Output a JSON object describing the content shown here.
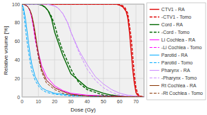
{
  "chart_data": {
    "type": "line",
    "xlabel": "Dose (Gy)",
    "ylabel": "Relative volume [%]",
    "xlim": [
      0,
      75
    ],
    "ylim": [
      0,
      100
    ],
    "xticks": [
      0,
      10,
      20,
      30,
      40,
      50,
      60,
      70
    ],
    "yticks": [
      0,
      20,
      40,
      60,
      80,
      100
    ],
    "grid": true,
    "legend": "upper right",
    "series": [
      {
        "name": "CTV1 - RA",
        "color": "#dd0000",
        "line_style": "solid",
        "x": [
          0,
          55,
          58,
          60,
          62,
          64,
          65,
          66,
          67,
          68,
          69,
          70,
          71,
          72,
          75
        ],
        "values": [
          100,
          100,
          100,
          99,
          97,
          92,
          85,
          70,
          50,
          30,
          15,
          5,
          2,
          1,
          0
        ]
      },
      {
        "name": "-CTV1 - Tomo",
        "color": "#dd0000",
        "line_style": "dashed",
        "x": [
          0,
          58,
          61,
          63,
          65,
          67,
          68,
          69,
          70,
          71,
          72,
          75
        ],
        "values": [
          100,
          100,
          99,
          97,
          90,
          65,
          45,
          25,
          10,
          4,
          1,
          0
        ]
      },
      {
        "name": "Cord - RA",
        "color": "#006600",
        "line_style": "solid",
        "x": [
          0,
          1,
          2,
          3,
          5,
          8,
          10,
          12,
          14,
          16,
          18,
          20,
          25,
          30,
          40,
          50,
          55,
          60,
          65
        ],
        "values": [
          100,
          100,
          100,
          100,
          100,
          100,
          100,
          99,
          97,
          93,
          85,
          70,
          45,
          25,
          10,
          4,
          2,
          1,
          0
        ]
      },
      {
        "name": "-Cord - Tomo",
        "color": "#006600",
        "line_style": "dashed",
        "x": [
          0,
          1,
          2,
          3,
          5,
          8,
          10,
          12,
          14,
          16,
          18,
          20,
          22,
          25,
          30,
          35,
          40,
          50,
          60
        ],
        "values": [
          100,
          100,
          100,
          100,
          100,
          100,
          100,
          99,
          97,
          93,
          87,
          78,
          65,
          50,
          30,
          15,
          8,
          2,
          0
        ]
      },
      {
        "name": "Li Cochlea - RA",
        "color": "#ff00ff",
        "line_style": "solid",
        "x": [
          0,
          1,
          2,
          3,
          4,
          5,
          6,
          7,
          8,
          10,
          12,
          15,
          20,
          25,
          30,
          40,
          55,
          75
        ],
        "values": [
          100,
          100,
          99,
          98,
          96,
          92,
          85,
          76,
          65,
          48,
          34,
          22,
          12,
          7,
          4,
          2,
          1,
          0
        ]
      },
      {
        "name": "-Li Cochlea - Tomo",
        "color": "#ff00ff",
        "line_style": "dashed",
        "x": [
          0,
          1,
          2,
          3,
          4,
          5,
          6,
          7,
          8,
          10,
          12,
          15,
          20,
          25,
          30,
          40,
          55,
          75
        ],
        "values": [
          100,
          100,
          99,
          98,
          96,
          92,
          85,
          75,
          62,
          44,
          30,
          18,
          10,
          6,
          3,
          1,
          0,
          0
        ]
      },
      {
        "name": "Parotid - RA",
        "color": "#00aaff",
        "line_style": "solid",
        "x": [
          0,
          1,
          2,
          3,
          4,
          5,
          6,
          8,
          10,
          12,
          15,
          20,
          25,
          30,
          40,
          50,
          60,
          75
        ],
        "values": [
          100,
          95,
          85,
          72,
          58,
          45,
          35,
          22,
          15,
          10,
          7,
          4,
          3,
          2,
          1,
          1,
          0,
          0
        ]
      },
      {
        "name": "Parotid - Tomo",
        "color": "#00aaff",
        "line_style": "dashed",
        "x": [
          0,
          1,
          2,
          3,
          4,
          5,
          6,
          8,
          10,
          12,
          15,
          20,
          25,
          30,
          40,
          50,
          60,
          75
        ],
        "values": [
          100,
          90,
          75,
          60,
          48,
          37,
          28,
          18,
          12,
          8,
          5,
          3,
          2,
          1,
          1,
          0,
          0,
          0
        ]
      },
      {
        "name": "Pharynx - RA",
        "color": "#cc88ff",
        "line_style": "solid",
        "x": [
          0,
          2,
          5,
          10,
          15,
          18,
          20,
          22,
          25,
          28,
          30,
          35,
          40,
          45,
          50,
          55,
          60,
          65,
          75
        ],
        "values": [
          100,
          100,
          100,
          100,
          100,
          99,
          98,
          96,
          90,
          80,
          70,
          50,
          35,
          22,
          14,
          8,
          4,
          2,
          0
        ]
      },
      {
        "name": "-Pharynx - Tomo",
        "color": "#cc88ff",
        "line_style": "dashed",
        "x": [
          0,
          2,
          5,
          10,
          15,
          18,
          20,
          22,
          25,
          28,
          30,
          35,
          40,
          45,
          50,
          55,
          60,
          65,
          75
        ],
        "values": [
          100,
          100,
          100,
          100,
          100,
          99,
          98,
          96,
          90,
          80,
          70,
          48,
          30,
          18,
          10,
          5,
          2,
          1,
          0
        ]
      },
      {
        "name": "Rt Cochlea - RA",
        "color": "#883300",
        "line_style": "solid",
        "x": [
          0,
          1,
          2,
          3,
          4,
          5,
          6,
          7,
          8,
          9,
          10,
          12,
          15,
          20,
          25,
          30,
          40,
          75
        ],
        "values": [
          100,
          100,
          99,
          98,
          96,
          93,
          88,
          80,
          70,
          58,
          47,
          30,
          18,
          10,
          6,
          3,
          1,
          0
        ]
      },
      {
        "name": "-Rt Cochlea - Tomo",
        "color": "#883300",
        "line_style": "dashed",
        "x": [
          0,
          1,
          2,
          3,
          4,
          5,
          6,
          7,
          8,
          9,
          10,
          12,
          15,
          20,
          25,
          30,
          40,
          75
        ],
        "values": [
          100,
          100,
          99,
          98,
          96,
          93,
          87,
          78,
          67,
          55,
          43,
          27,
          15,
          8,
          4,
          2,
          1,
          0
        ]
      }
    ]
  }
}
